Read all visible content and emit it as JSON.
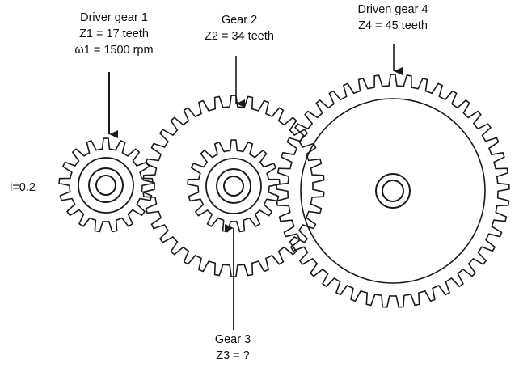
{
  "gears": [
    {
      "id": "gear1",
      "name_line": "Driver gear 1",
      "teeth_line": "Z1 = 17 teeth",
      "speed_line": "ω1 = 1500 rpm",
      "teeth": 17
    },
    {
      "id": "gear2",
      "name_line": "Gear 2",
      "teeth_line": "Z2 = 34 teeth",
      "teeth": 34
    },
    {
      "id": "gear3",
      "name_line": "Gear 3",
      "teeth_line": "Z3 = ?"
    },
    {
      "id": "gear4",
      "name_line": "Driven gear 4",
      "teeth_line": "Z4 = 45 teeth",
      "teeth": 45
    }
  ],
  "ratio_label": "i=0.2",
  "colors": {
    "stroke": "#1a1a1a",
    "text": "#111111",
    "background": "#ffffff"
  }
}
